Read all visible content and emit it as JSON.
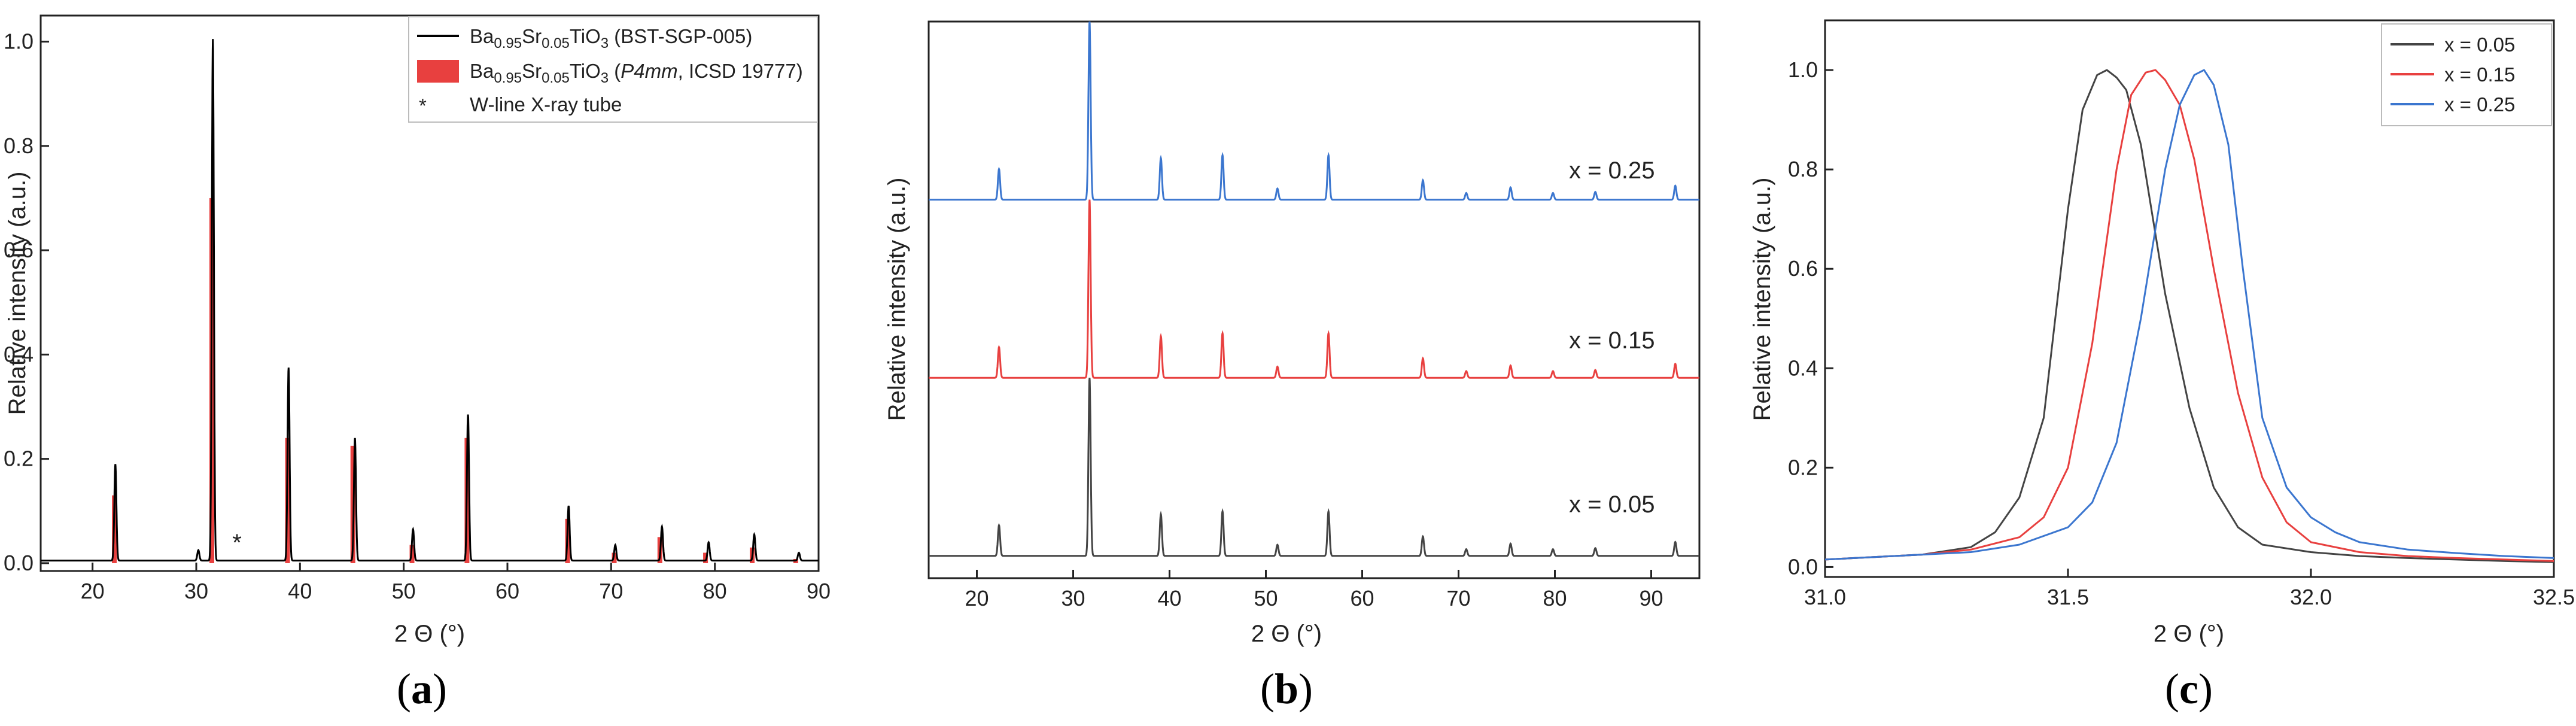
{
  "chart_data": [
    {
      "type": "line",
      "panel_label": "(a)",
      "xlabel": "2 Θ (°)",
      "ylabel": "Relative intensity (a.u.)",
      "xlim": [
        15,
        90
      ],
      "ylim": [
        0,
        1.0
      ],
      "x_ticks": [
        20,
        30,
        40,
        50,
        60,
        70,
        80,
        90
      ],
      "y_ticks": [
        0.0,
        0.2,
        0.4,
        0.6,
        0.8,
        1.0
      ],
      "legend_position": "top-right",
      "legend": [
        {
          "base": "Ba",
          "s1": "0.95",
          "el2": "Sr",
          "s2": "0.05",
          "el3": "TiO",
          "s3": "3",
          "open": " (",
          "italic": "",
          "tail": "BST-SGP-005)",
          "color": "#000000",
          "kind": "line"
        },
        {
          "base": "Ba",
          "s1": "0.95",
          "el2": "Sr",
          "s2": "0.05",
          "el3": "TiO",
          "s3": "3",
          "open": " (",
          "italic": "P4mm",
          "tail": ", ICSD 19777)",
          "color": "#e8403f",
          "kind": "box"
        },
        {
          "marker": "*",
          "text": "W-line X-ray tube"
        }
      ],
      "annotation": {
        "text": "*",
        "x": 30.2
      },
      "series": [
        {
          "color": "#000000",
          "style": "line",
          "baseline": 0.005,
          "peaks": [
            {
              "x": 22.2,
              "y": 0.185
            },
            {
              "x": 30.2,
              "y": 0.02
            },
            {
              "x": 31.6,
              "y": 1.0
            },
            {
              "x": 38.9,
              "y": 0.37
            },
            {
              "x": 45.3,
              "y": 0.235
            },
            {
              "x": 50.9,
              "y": 0.06
            },
            {
              "x": 56.2,
              "y": 0.28
            },
            {
              "x": 65.9,
              "y": 0.105
            },
            {
              "x": 70.4,
              "y": 0.03
            },
            {
              "x": 74.9,
              "y": 0.065
            },
            {
              "x": 79.4,
              "y": 0.035
            },
            {
              "x": 83.8,
              "y": 0.05
            },
            {
              "x": 88.1,
              "y": 0.015
            }
          ]
        },
        {
          "color": "#e8403f",
          "style": "sticks",
          "sticks": [
            {
              "x": 22.1,
              "y": 0.13
            },
            {
              "x": 31.5,
              "y": 0.7
            },
            {
              "x": 38.8,
              "y": 0.24
            },
            {
              "x": 45.1,
              "y": 0.225
            },
            {
              "x": 50.8,
              "y": 0.035
            },
            {
              "x": 56.1,
              "y": 0.24
            },
            {
              "x": 65.8,
              "y": 0.085
            },
            {
              "x": 70.3,
              "y": 0.02
            },
            {
              "x": 74.7,
              "y": 0.05
            },
            {
              "x": 79.1,
              "y": 0.02
            },
            {
              "x": 83.6,
              "y": 0.03
            },
            {
              "x": 87.8,
              "y": 0.008
            }
          ]
        }
      ]
    },
    {
      "type": "line",
      "panel_label": "(b)",
      "xlabel": "2 Θ (°)",
      "ylabel": "Relative intensity (a.u.)",
      "xlim": [
        15,
        95
      ],
      "x_ticks": [
        20,
        30,
        40,
        50,
        60,
        70,
        80,
        90
      ],
      "y_ticks": [],
      "series": [
        {
          "name": "x = 0.25",
          "color": "#3b76cf",
          "offset": 0.68
        },
        {
          "name": "x = 0.15",
          "color": "#e8403f",
          "offset": 0.36
        },
        {
          "name": "x = 0.05",
          "color": "#444444",
          "offset": 0.04
        }
      ],
      "peaks_b": [
        {
          "x": 22.3,
          "y": 0.055
        },
        {
          "x": 31.7,
          "y": 0.32
        },
        {
          "x": 39.1,
          "y": 0.075
        },
        {
          "x": 45.5,
          "y": 0.08
        },
        {
          "x": 51.2,
          "y": 0.02
        },
        {
          "x": 56.5,
          "y": 0.08
        },
        {
          "x": 66.3,
          "y": 0.035
        },
        {
          "x": 70.8,
          "y": 0.012
        },
        {
          "x": 75.4,
          "y": 0.022
        },
        {
          "x": 79.8,
          "y": 0.012
        },
        {
          "x": 84.2,
          "y": 0.014
        },
        {
          "x": 92.5,
          "y": 0.025
        }
      ]
    },
    {
      "type": "line",
      "panel_label": "(c)",
      "xlabel": "2 Θ (°)",
      "ylabel": "Relative intensity (a.u.)",
      "xlim": [
        31.0,
        32.5
      ],
      "ylim": [
        -0.02,
        1.1
      ],
      "x_ticks": [
        31.0,
        31.5,
        32.0,
        32.5
      ],
      "y_ticks": [
        0.0,
        0.2,
        0.4,
        0.6,
        0.8,
        1.0
      ],
      "legend_position": "top-right",
      "series": [
        {
          "name": "x = 0.05",
          "color": "#444444",
          "x": [
            31.0,
            31.1,
            31.2,
            31.3,
            31.35,
            31.4,
            31.45,
            31.5,
            31.53,
            31.56,
            31.58,
            31.6,
            31.62,
            31.65,
            31.7,
            31.75,
            31.8,
            31.85,
            31.9,
            32.0,
            32.1,
            32.2,
            32.3,
            32.4,
            32.5
          ],
          "y": [
            0.015,
            0.02,
            0.025,
            0.04,
            0.07,
            0.14,
            0.3,
            0.72,
            0.92,
            0.99,
            1.0,
            0.985,
            0.96,
            0.85,
            0.55,
            0.32,
            0.16,
            0.08,
            0.045,
            0.03,
            0.022,
            0.018,
            0.015,
            0.012,
            0.01
          ]
        },
        {
          "name": "x = 0.15",
          "color": "#e8403f",
          "x": [
            31.0,
            31.1,
            31.2,
            31.3,
            31.4,
            31.45,
            31.5,
            31.55,
            31.6,
            31.63,
            31.66,
            31.68,
            31.7,
            31.73,
            31.76,
            31.8,
            31.85,
            31.9,
            31.95,
            32.0,
            32.1,
            32.2,
            32.3,
            32.4,
            32.5
          ],
          "y": [
            0.015,
            0.02,
            0.025,
            0.035,
            0.06,
            0.1,
            0.2,
            0.45,
            0.8,
            0.95,
            0.995,
            1.0,
            0.98,
            0.93,
            0.82,
            0.6,
            0.35,
            0.18,
            0.09,
            0.05,
            0.03,
            0.022,
            0.018,
            0.015,
            0.012
          ]
        },
        {
          "name": "x = 0.25",
          "color": "#3b76cf",
          "x": [
            31.0,
            31.1,
            31.2,
            31.3,
            31.4,
            31.5,
            31.55,
            31.6,
            31.65,
            31.7,
            31.73,
            31.76,
            31.78,
            31.8,
            31.83,
            31.86,
            31.9,
            31.95,
            32.0,
            32.05,
            32.1,
            32.2,
            32.3,
            32.4,
            32.5
          ],
          "y": [
            0.015,
            0.02,
            0.025,
            0.03,
            0.045,
            0.08,
            0.13,
            0.25,
            0.5,
            0.8,
            0.93,
            0.99,
            1.0,
            0.97,
            0.85,
            0.6,
            0.3,
            0.16,
            0.1,
            0.07,
            0.05,
            0.035,
            0.028,
            0.022,
            0.018
          ]
        }
      ]
    }
  ]
}
